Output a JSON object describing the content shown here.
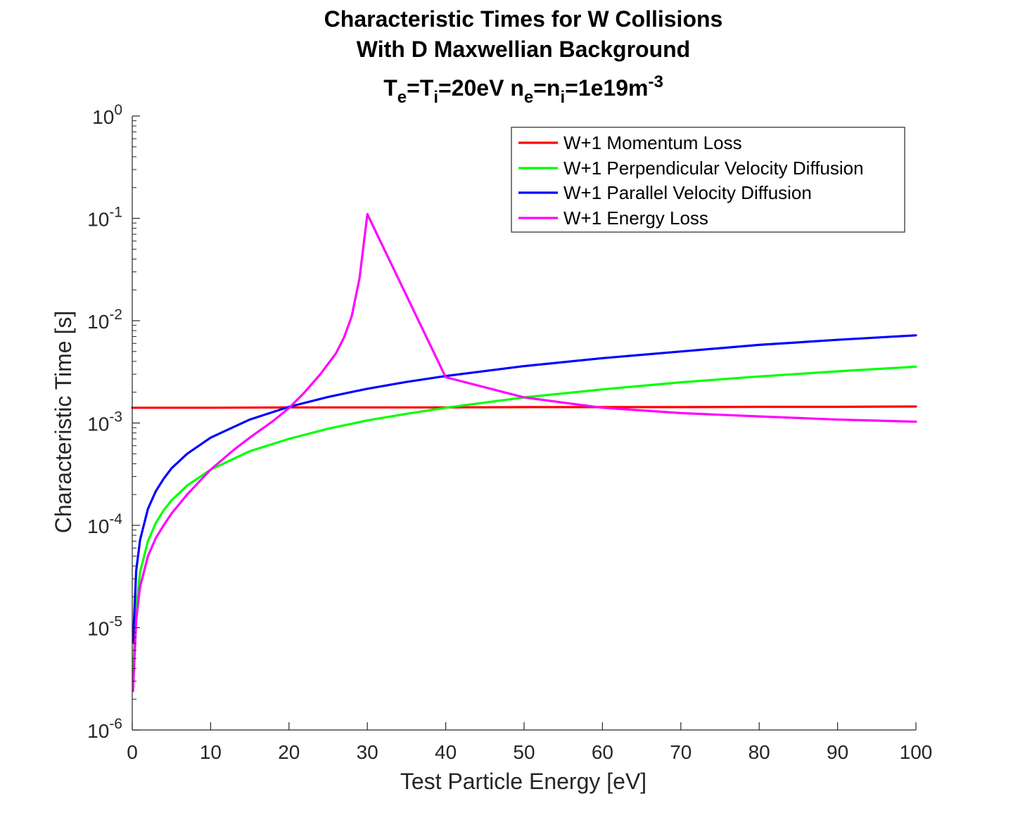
{
  "chart_data": {
    "type": "line",
    "title": {
      "line1": "Characteristic Times for W Collisions",
      "line2": "With D Maxwellian Background",
      "line3_parts": [
        {
          "t": "T",
          "s": "n"
        },
        {
          "t": "e",
          "s": "sub"
        },
        {
          "t": "=T",
          "s": "n"
        },
        {
          "t": "i",
          "s": "sub"
        },
        {
          "t": "=20eV n",
          "s": "n"
        },
        {
          "t": "e",
          "s": "sub"
        },
        {
          "t": "=n",
          "s": "n"
        },
        {
          "t": "i",
          "s": "sub"
        },
        {
          "t": "=1e19m",
          "s": "n"
        },
        {
          "t": "-3",
          "s": "sup"
        }
      ]
    },
    "xlabel": "Test Particle Energy [eV]",
    "ylabel": "Characteristic Time [s]",
    "xlim": [
      0,
      100
    ],
    "ylim": [
      1e-06,
      1
    ],
    "yscale": "log",
    "grid": false,
    "xticks": [
      "0",
      "10",
      "20",
      "30",
      "40",
      "50",
      "60",
      "70",
      "80",
      "90",
      "100"
    ],
    "yticks": [
      {
        "value": 1e-06,
        "base": "10",
        "exp": "-6"
      },
      {
        "value": 1e-05,
        "base": "10",
        "exp": "-5"
      },
      {
        "value": 0.0001,
        "base": "10",
        "exp": "-4"
      },
      {
        "value": 0.001,
        "base": "10",
        "exp": "-3"
      },
      {
        "value": 0.01,
        "base": "10",
        "exp": "-2"
      },
      {
        "value": 0.1,
        "base": "10",
        "exp": "-1"
      },
      {
        "value": 1,
        "base": "10",
        "exp": "0"
      }
    ],
    "legend_position": "top-right",
    "series": [
      {
        "name": "W+1 Momentum Loss",
        "color": "#ff0000",
        "points": [
          [
            0,
            0.00141
          ],
          [
            10,
            0.00141
          ],
          [
            20,
            0.00142
          ],
          [
            30,
            0.00142
          ],
          [
            40,
            0.00142
          ],
          [
            50,
            0.00143
          ],
          [
            60,
            0.00143
          ],
          [
            70,
            0.00143
          ],
          [
            80,
            0.00144
          ],
          [
            90,
            0.00144
          ],
          [
            100,
            0.00145
          ]
        ]
      },
      {
        "name": "W+1 Perpendicular Velocity Diffusion",
        "color": "#00ff00",
        "points": [
          [
            0.1,
            3.6e-06
          ],
          [
            0.5,
            1.5e-05
          ],
          [
            1,
            3.5e-05
          ],
          [
            2,
            7e-05
          ],
          [
            3,
            0.000105
          ],
          [
            4,
            0.00014
          ],
          [
            5,
            0.000175
          ],
          [
            7,
            0.000245
          ],
          [
            10,
            0.00035
          ],
          [
            15,
            0.00053
          ],
          [
            20,
            0.0007
          ],
          [
            25,
            0.00088
          ],
          [
            30,
            0.00106
          ],
          [
            35,
            0.00123
          ],
          [
            40,
            0.00141
          ],
          [
            50,
            0.00178
          ],
          [
            60,
            0.00213
          ],
          [
            70,
            0.0025
          ],
          [
            80,
            0.00285
          ],
          [
            90,
            0.0032
          ],
          [
            100,
            0.00355
          ]
        ]
      },
      {
        "name": "W+1 Parallel Velocity Diffusion",
        "color": "#0000ff",
        "points": [
          [
            0.1,
            7.2e-06
          ],
          [
            0.5,
            3.6e-05
          ],
          [
            1,
            7.2e-05
          ],
          [
            2,
            0.000145
          ],
          [
            3,
            0.000215
          ],
          [
            4,
            0.000285
          ],
          [
            5,
            0.00036
          ],
          [
            7,
            0.0005
          ],
          [
            10,
            0.00072
          ],
          [
            15,
            0.00108
          ],
          [
            20,
            0.00144
          ],
          [
            25,
            0.0018
          ],
          [
            30,
            0.00216
          ],
          [
            35,
            0.00252
          ],
          [
            40,
            0.00288
          ],
          [
            50,
            0.0036
          ],
          [
            60,
            0.0043
          ],
          [
            70,
            0.005
          ],
          [
            80,
            0.0058
          ],
          [
            90,
            0.0065
          ],
          [
            100,
            0.0072
          ]
        ]
      },
      {
        "name": "W+1 Energy Loss",
        "color": "#ff00ff",
        "points": [
          [
            0.1,
            2.4e-06
          ],
          [
            0.5,
            1.2e-05
          ],
          [
            1,
            2.5e-05
          ],
          [
            2,
            5e-05
          ],
          [
            3,
            7.5e-05
          ],
          [
            4,
            0.0001
          ],
          [
            5,
            0.00013
          ],
          [
            7,
            0.0002
          ],
          [
            10,
            0.00035
          ],
          [
            13,
            0.00055
          ],
          [
            15,
            0.00072
          ],
          [
            18,
            0.00105
          ],
          [
            20,
            0.0014
          ],
          [
            22,
            0.002
          ],
          [
            24,
            0.003
          ],
          [
            26,
            0.0048
          ],
          [
            27,
            0.0068
          ],
          [
            28,
            0.011
          ],
          [
            29,
            0.026
          ],
          [
            30,
            0.11
          ],
          [
            40,
            0.0028
          ],
          [
            50,
            0.00178
          ],
          [
            60,
            0.00141
          ],
          [
            70,
            0.00125
          ],
          [
            80,
            0.00116
          ],
          [
            90,
            0.00108
          ],
          [
            100,
            0.00103
          ]
        ]
      }
    ]
  }
}
